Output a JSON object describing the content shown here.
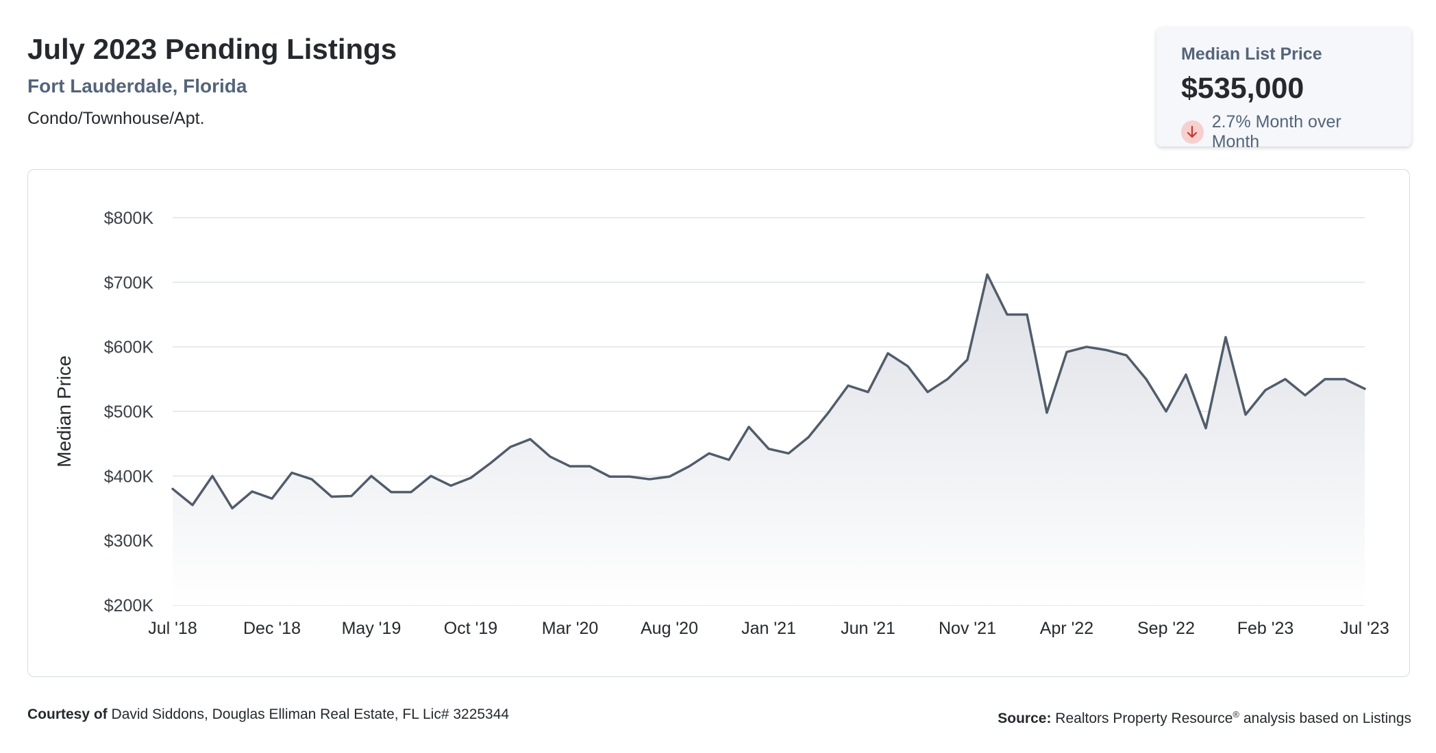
{
  "header": {
    "title": "July 2023 Pending Listings",
    "location": "Fort Lauderdale, Florida",
    "property_type": "Condo/Townhouse/Apt."
  },
  "kpi": {
    "label": "Median List Price",
    "value": "$535,000",
    "change_text": "2.7% Month over Month",
    "direction": "down",
    "arrow_icon": "arrow-down-icon"
  },
  "footer": {
    "courtesy_label": "Courtesy of",
    "courtesy_text": "David Siddons, Douglas Elliman Real Estate, FL Lic# 3225344",
    "source_label": "Source:",
    "source_text_a": "Realtors Property Resource",
    "source_sup": "®",
    "source_text_b": "analysis based on Listings"
  },
  "colors": {
    "line": "#515c6b",
    "area_top": "#dde0e6",
    "area_bottom": "#ffffff",
    "grid": "#dfe2e8",
    "axis_text": "#3a3f46"
  },
  "chart_data": {
    "type": "area",
    "ylabel": "Median Price",
    "xlabel": "",
    "ylim": [
      200000,
      800000
    ],
    "y_ticks": [
      200000,
      300000,
      400000,
      500000,
      600000,
      700000,
      800000
    ],
    "y_tick_labels": [
      "$200K",
      "$300K",
      "$400K",
      "$500K",
      "$600K",
      "$700K",
      "$800K"
    ],
    "x_tick_labels": [
      "Jul '18",
      "Dec '18",
      "May '19",
      "Oct '19",
      "Mar '20",
      "Aug '20",
      "Jan '21",
      "Jun '21",
      "Nov '21",
      "Apr '22",
      "Sep '22",
      "Feb '23",
      "Jul '23"
    ],
    "x_tick_every": 5,
    "grid": true,
    "series": [
      {
        "values": [
          380000,
          355000,
          400000,
          350000,
          376000,
          365000,
          405000,
          395000,
          368000,
          369000,
          400000,
          375000,
          375000,
          400000,
          385000,
          397000,
          420000,
          445000,
          457000,
          430000,
          415000,
          415000,
          399000,
          399000,
          395000,
          399000,
          415000,
          435000,
          425000,
          476000,
          442000,
          435000,
          460000,
          498000,
          540000,
          530000,
          590000,
          570000,
          530000,
          550000,
          580000,
          712000,
          650000,
          650000,
          498000,
          592000,
          600000,
          595000,
          587000,
          550000,
          500000,
          557000,
          474000,
          615000,
          495000,
          533000,
          550000,
          525000,
          550000,
          550000,
          535000
        ]
      }
    ]
  }
}
